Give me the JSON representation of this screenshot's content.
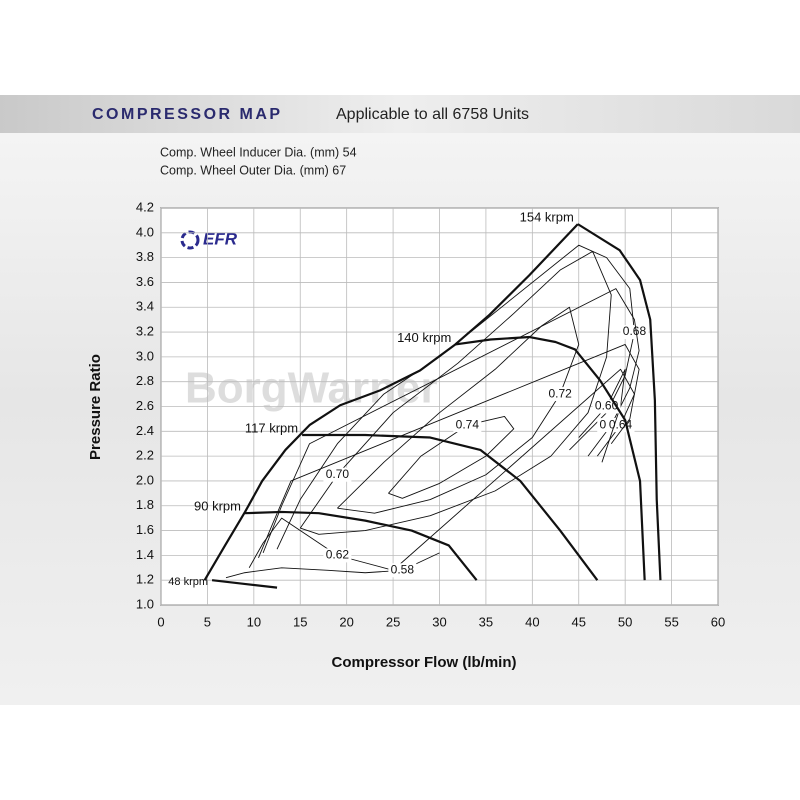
{
  "chart_data": {
    "type": "line",
    "title": "COMPRESSOR MAP",
    "subtitle": "Applicable to all 6758 Units",
    "notes": [
      "Comp. Wheel Inducer Dia. (mm) 54",
      "Comp. Wheel Outer Dia. (mm) 67"
    ],
    "logo": "EFR",
    "watermark": "BorgWarner",
    "x_label": "Compressor Flow (lb/min)",
    "y_label": "Pressure Ratio",
    "xlim": [
      0,
      60
    ],
    "ylim": [
      1,
      4.2
    ],
    "xticks": [
      0,
      5,
      10,
      15,
      20,
      25,
      30,
      35,
      40,
      45,
      50,
      55,
      60
    ],
    "yticks": [
      {
        "value": 1,
        "label": "1.0"
      },
      1.2,
      1.4,
      1.6,
      1.8,
      {
        "value": 2,
        "label": "2.0"
      },
      2.2,
      2.4,
      2.6,
      2.8,
      {
        "value": 3,
        "label": "3.0"
      },
      3.2,
      3.4,
      3.6,
      3.8,
      {
        "value": 4,
        "label": "4.0"
      },
      4.2
    ],
    "grid": true,
    "surge_line": {
      "x": [
        4.7,
        6.9,
        9.05,
        10.9,
        13.4,
        16,
        19.3,
        23.6,
        27.9,
        31.7,
        35.4,
        39.7,
        44.9
      ],
      "values": [
        1.2,
        1.48,
        1.75,
        2.0,
        2.25,
        2.45,
        2.61,
        2.73,
        2.89,
        3.1,
        3.34,
        3.66,
        4.07
      ]
    },
    "series": [
      {
        "name": "154 krpm",
        "x": [
          44.9,
          49.4,
          51.6,
          52.7,
          53.2,
          53.4,
          53.8
        ],
        "values": [
          4.07,
          3.86,
          3.62,
          3.3,
          2.65,
          1.85,
          1.2
        ]
      },
      {
        "name": "140 krpm",
        "x": [
          31.7,
          35.5,
          39.7,
          42.5,
          44.6,
          47.3,
          50,
          51.6,
          52.1
        ],
        "values": [
          3.1,
          3.14,
          3.16,
          3.12,
          3.06,
          2.81,
          2.49,
          2.0,
          1.2
        ]
      },
      {
        "name": "117 krpm",
        "x": [
          15.2,
          22,
          29,
          34.4,
          38.7,
          43,
          47
        ],
        "values": [
          2.37,
          2.37,
          2.35,
          2.25,
          2.0,
          1.6,
          1.2
        ]
      },
      {
        "name": "90 krpm",
        "x": [
          9.05,
          13,
          17,
          22,
          27,
          31,
          34
        ],
        "values": [
          1.74,
          1.75,
          1.74,
          1.68,
          1.6,
          1.48,
          1.2
        ]
      },
      {
        "name": "48 krpm",
        "x": [
          5.5,
          9,
          12.5
        ],
        "values": [
          1.2,
          1.17,
          1.14
        ]
      }
    ],
    "efficiency_contours": [
      {
        "name": "0.74",
        "x": [
          24.5,
          28,
          33,
          37,
          38,
          35,
          30,
          26,
          24.5
        ],
        "values": [
          1.9,
          2.2,
          2.45,
          2.52,
          2.42,
          2.2,
          1.98,
          1.86,
          1.9
        ]
      },
      {
        "name": "0.72",
        "x": [
          19,
          24,
          30,
          36,
          41,
          44,
          45,
          43,
          40,
          35,
          29,
          23,
          19
        ],
        "values": [
          1.78,
          2.15,
          2.55,
          2.9,
          3.25,
          3.4,
          3.1,
          2.7,
          2.35,
          2.05,
          1.85,
          1.74,
          1.78
        ]
      },
      {
        "name": "0.70",
        "x": [
          15,
          19,
          25,
          32,
          38,
          43,
          46.5,
          48.5,
          48,
          46,
          42,
          36,
          29,
          22,
          17,
          15
        ],
        "values": [
          1.62,
          2.05,
          2.55,
          2.95,
          3.35,
          3.7,
          3.85,
          3.5,
          3.0,
          2.55,
          2.2,
          1.92,
          1.72,
          1.6,
          1.57,
          1.62
        ]
      },
      {
        "name": "0.68",
        "x": [
          12.5,
          15,
          19,
          24,
          30,
          45,
          48,
          50.5,
          51,
          50,
          48,
          44
        ],
        "values": [
          1.45,
          1.85,
          2.3,
          2.7,
          3.0,
          3.9,
          3.8,
          3.55,
          3.2,
          2.85,
          2.55,
          2.25
        ]
      },
      {
        "name": "0.66",
        "x": [
          11,
          13,
          16,
          49,
          51,
          51.5,
          50.5,
          48.5,
          46
        ],
        "values": [
          1.42,
          1.8,
          2.3,
          3.55,
          3.3,
          3.05,
          2.75,
          2.45,
          2.2
        ]
      },
      {
        "name": "0.64",
        "x": [
          10.5,
          12,
          14,
          50,
          51.5,
          51,
          49.5,
          47
        ],
        "values": [
          1.38,
          1.65,
          2.0,
          3.1,
          2.9,
          2.7,
          2.45,
          2.2
        ]
      },
      {
        "name": "0.62",
        "x": [
          9.5,
          11,
          13,
          19,
          25,
          49.5,
          51,
          50.5,
          48.5
        ],
        "values": [
          1.3,
          1.5,
          1.7,
          1.4,
          1.28,
          2.9,
          2.7,
          2.5,
          2.3
        ]
      },
      {
        "name": "0.60",
        "x": [
          45,
          48,
          50,
          49.5,
          47.5
        ],
        "values": [
          2.35,
          2.6,
          2.9,
          2.6,
          2.15
        ]
      },
      {
        "name": "0.58",
        "x": [
          7,
          9,
          13,
          18,
          22,
          26,
          30
        ],
        "values": [
          1.22,
          1.26,
          1.3,
          1.28,
          1.26,
          1.28,
          1.42
        ]
      }
    ]
  }
}
